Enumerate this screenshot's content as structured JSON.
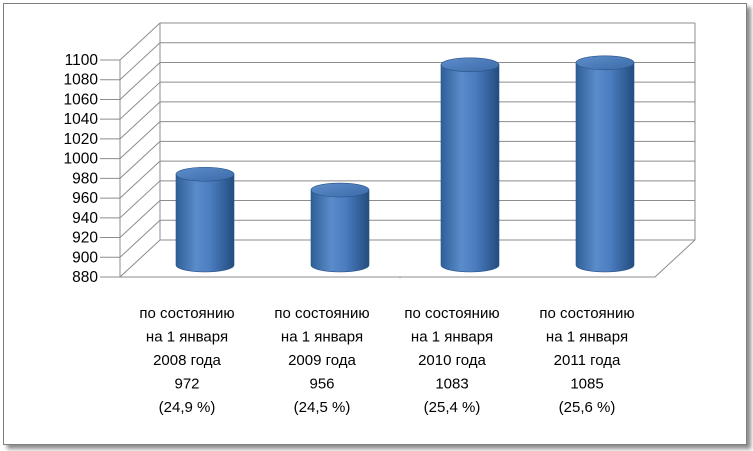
{
  "chart_data": {
    "type": "bar",
    "style": "3d-cylinder",
    "title": "",
    "xlabel": "",
    "ylabel": "",
    "ylim": [
      880,
      1100
    ],
    "ytick_step": 20,
    "grid": true,
    "legend": "none",
    "categories": [
      [
        "по состоянию",
        "на 1 января",
        "2008 года",
        "972",
        "(24,9 %)"
      ],
      [
        "по состоянию",
        "на 1 января",
        "2009 года",
        "956",
        "(24,5 %)"
      ],
      [
        "по состоянию",
        "на 1 января",
        "2010 года",
        "1083",
        "(25,4 %)"
      ],
      [
        "по состоянию",
        "на 1 января",
        "2011 года",
        "1085",
        "(25,6 %)"
      ]
    ],
    "values": [
      972,
      956,
      1083,
      1085
    ],
    "colors": {
      "bar": "#4f81bd",
      "bar_dark": "#2b5a91",
      "bar_light": "#8fb3df",
      "grid": "#8c8c8c"
    }
  }
}
